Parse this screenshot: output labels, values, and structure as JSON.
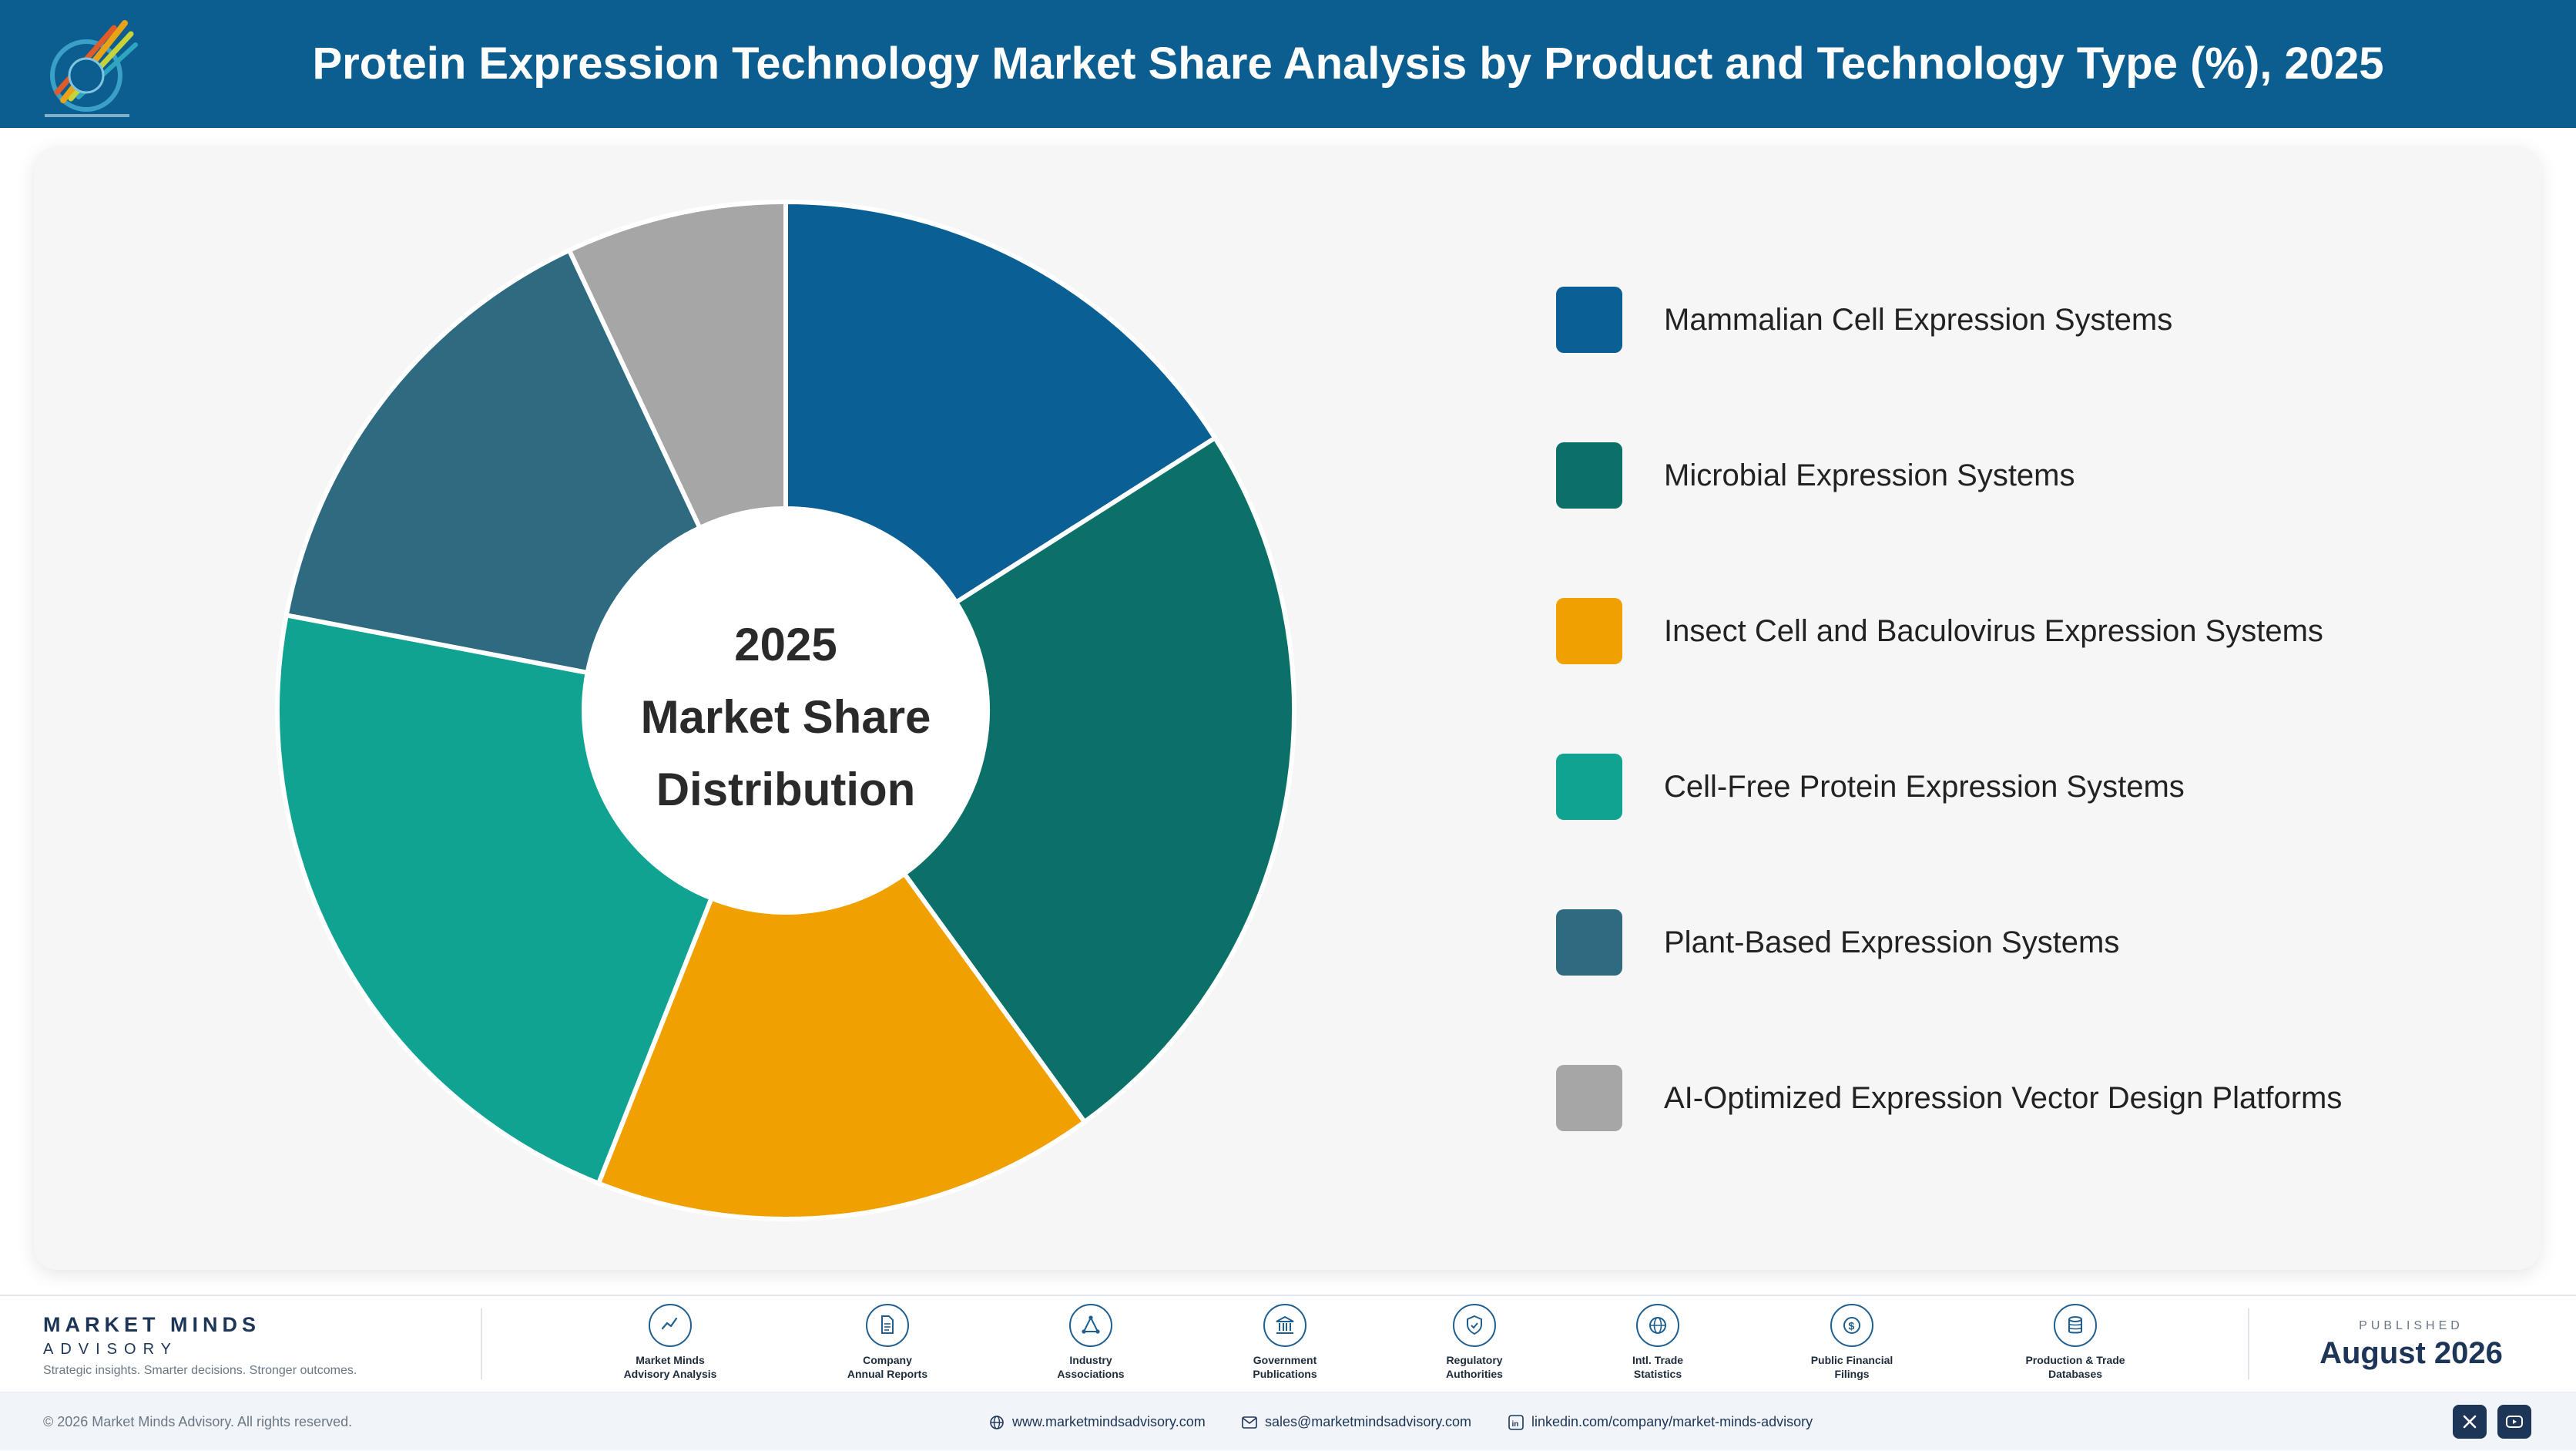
{
  "header": {
    "title": "Protein Expression Technology Market Share Analysis by Product and Technology Type (%), 2025"
  },
  "chart_data": {
    "type": "pie",
    "variant": "donut",
    "center_label": [
      "2025",
      "Market Share",
      "Distribution"
    ],
    "categories": [
      "Mammalian Cell Expression Systems",
      "Microbial Expression Systems",
      "Insect Cell and Baculovirus Expression Systems",
      "Cell-Free Protein Expression Systems",
      "Plant-Based Expression Systems",
      "AI-Optimized Expression Vector Design Platforms"
    ],
    "values": [
      16,
      24,
      16,
      22,
      15,
      7
    ],
    "colors": [
      "#0a5f95",
      "#0b7168",
      "#f0a100",
      "#10a392",
      "#2f6b80",
      "#a6a6a6"
    ],
    "legend_position": "right"
  },
  "footer": {
    "brand_name": "MARKET MINDS",
    "brand_sub": "ADVISORY",
    "brand_tagline": "Strategic insights. Smarter decisions. Stronger outcomes.",
    "sources": [
      {
        "line1": "Market Minds",
        "line2": "Advisory Analysis",
        "icon": "chart-line-icon"
      },
      {
        "line1": "Company",
        "line2": "Annual Reports",
        "icon": "document-icon"
      },
      {
        "line1": "Industry",
        "line2": "Associations",
        "icon": "network-icon"
      },
      {
        "line1": "Government",
        "line2": "Publications",
        "icon": "government-building-icon"
      },
      {
        "line1": "Regulatory",
        "line2": "Authorities",
        "icon": "shield-check-icon"
      },
      {
        "line1": "Intl. Trade",
        "line2": "Statistics",
        "icon": "globe-icon"
      },
      {
        "line1": "Public Financial",
        "line2": "Filings",
        "icon": "dollar-coin-icon"
      },
      {
        "line1": "Production & Trade",
        "line2": "Databases",
        "icon": "database-icon"
      }
    ],
    "published_label": "PUBLISHED",
    "published_date": "August 2026",
    "copyright": "© 2026 Market Minds Advisory. All rights reserved.",
    "website": "www.marketmindsadvisory.com",
    "email": "sales@marketmindsadvisory.com",
    "linkedin": "linkedin.com/company/market-minds-advisory"
  }
}
